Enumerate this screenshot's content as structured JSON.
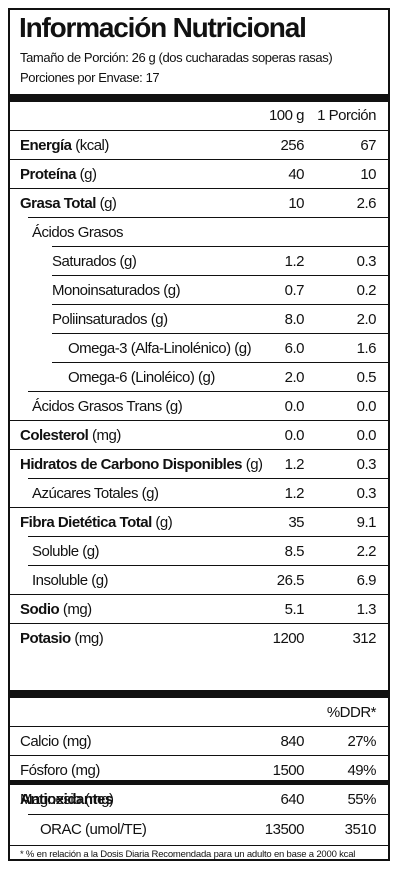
{
  "title": "Información Nutricional",
  "serving_size": "Tamaño de Porción: 26 g (dos cucharadas soperas rasas)",
  "servings_per_container": "Porciones por Envase: 17",
  "columns": {
    "per_100g": "100 g",
    "per_serving": "1 Porción"
  },
  "nutrients": [
    {
      "name": "Energía",
      "unit": " (kcal)",
      "v100": "256",
      "vserv": "67",
      "bold": true,
      "indent": 0
    },
    {
      "name": "Proteína",
      "unit": " (g)",
      "v100": "40",
      "vserv": "10",
      "bold": true,
      "indent": 0
    },
    {
      "name": "Grasa Total",
      "unit": " (g)",
      "v100": "10",
      "vserv": "2.6",
      "bold": true,
      "indent": 0
    },
    {
      "name": "Ácidos Grasos",
      "unit": "",
      "v100": "",
      "vserv": "",
      "bold": false,
      "indent": 1
    },
    {
      "name": "Saturados (g)",
      "unit": "",
      "v100": "1.2",
      "vserv": "0.3",
      "bold": false,
      "indent": 2
    },
    {
      "name": "Monoinsaturados (g)",
      "unit": "",
      "v100": "0.7",
      "vserv": "0.2",
      "bold": false,
      "indent": 2
    },
    {
      "name": "Poliinsaturados (g)",
      "unit": "",
      "v100": "8.0",
      "vserv": "2.0",
      "bold": false,
      "indent": 2
    },
    {
      "name": "Omega-3 (Alfa-Linolénico) (g)",
      "unit": "",
      "v100": "6.0",
      "vserv": "1.6",
      "bold": false,
      "indent": 3
    },
    {
      "name": "Omega-6 (Linoléico) (g)",
      "unit": "",
      "v100": "2.0",
      "vserv": "0.5",
      "bold": false,
      "indent": 3
    },
    {
      "name": "Ácidos Grasos Trans (g)",
      "unit": "",
      "v100": "0.0",
      "vserv": "0.0",
      "bold": false,
      "indent": 1
    },
    {
      "name": "Colesterol",
      "unit": " (mg)",
      "v100": "0.0",
      "vserv": "0.0",
      "bold": true,
      "indent": 0
    },
    {
      "name": "Hidratos de Carbono Disponibles",
      "unit": " (g)",
      "v100": "1.2",
      "vserv": "0.3",
      "bold": true,
      "indent": 0
    },
    {
      "name": "Azúcares Totales (g)",
      "unit": "",
      "v100": "1.2",
      "vserv": "0.3",
      "bold": false,
      "indent": 1
    },
    {
      "name": "Fibra Dietética Total",
      "unit": " (g)",
      "v100": "35",
      "vserv": "9.1",
      "bold": true,
      "indent": 0
    },
    {
      "name": "Soluble (g)",
      "unit": "",
      "v100": "8.5",
      "vserv": "2.2",
      "bold": false,
      "indent": 1
    },
    {
      "name": "Insoluble (g)",
      "unit": "",
      "v100": "26.5",
      "vserv": "6.9",
      "bold": false,
      "indent": 1
    },
    {
      "name": "Sodio",
      "unit": " (mg)",
      "v100": "5.1",
      "vserv": "1.3",
      "bold": true,
      "indent": 0
    },
    {
      "name": "Potasio",
      "unit": " (mg)",
      "v100": "1200",
      "vserv": "312",
      "bold": true,
      "indent": 0
    }
  ],
  "ddr_header": "%DDR*",
  "minerals": [
    {
      "name": "Calcio (mg)",
      "v100": "840",
      "ddr": "27%"
    },
    {
      "name": "Fósforo (mg)",
      "v100": "1500",
      "ddr": "49%"
    },
    {
      "name": "Magnesio (mg)",
      "v100": "640",
      "ddr": "55%"
    }
  ],
  "antioxidants": {
    "title": "Antioxidantes",
    "name": "ORAC (umol/TE)",
    "v100": "13500",
    "vserv": "3510"
  },
  "footnote": "* % en relación a la Dosis Diaria Recomendada para un adulto en base a 2000 kcal"
}
